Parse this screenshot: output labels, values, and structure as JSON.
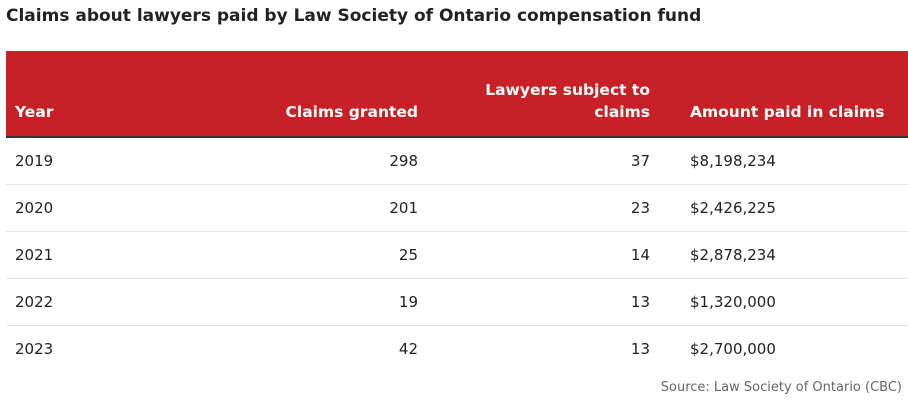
{
  "title": "Claims about lawyers paid by Law Society of Ontario compensation fund",
  "table": {
    "headers": [
      "Year",
      "Claims granted",
      "Lawyers subject to claims",
      "Amount paid in claims"
    ],
    "rows": [
      [
        "2019",
        "298",
        "37",
        "$8,198,234"
      ],
      [
        "2020",
        "201",
        "23",
        "$2,426,225"
      ],
      [
        "2021",
        "25",
        "14",
        "$2,878,234"
      ],
      [
        "2022",
        "19",
        "13",
        "$1,320,000"
      ],
      [
        "2023",
        "42",
        "13",
        "$2,700,000"
      ]
    ]
  },
  "source": "Source: Law Society of Ontario (CBC)",
  "colors": {
    "header_background": "#c72127",
    "header_text": "#ffffff"
  }
}
